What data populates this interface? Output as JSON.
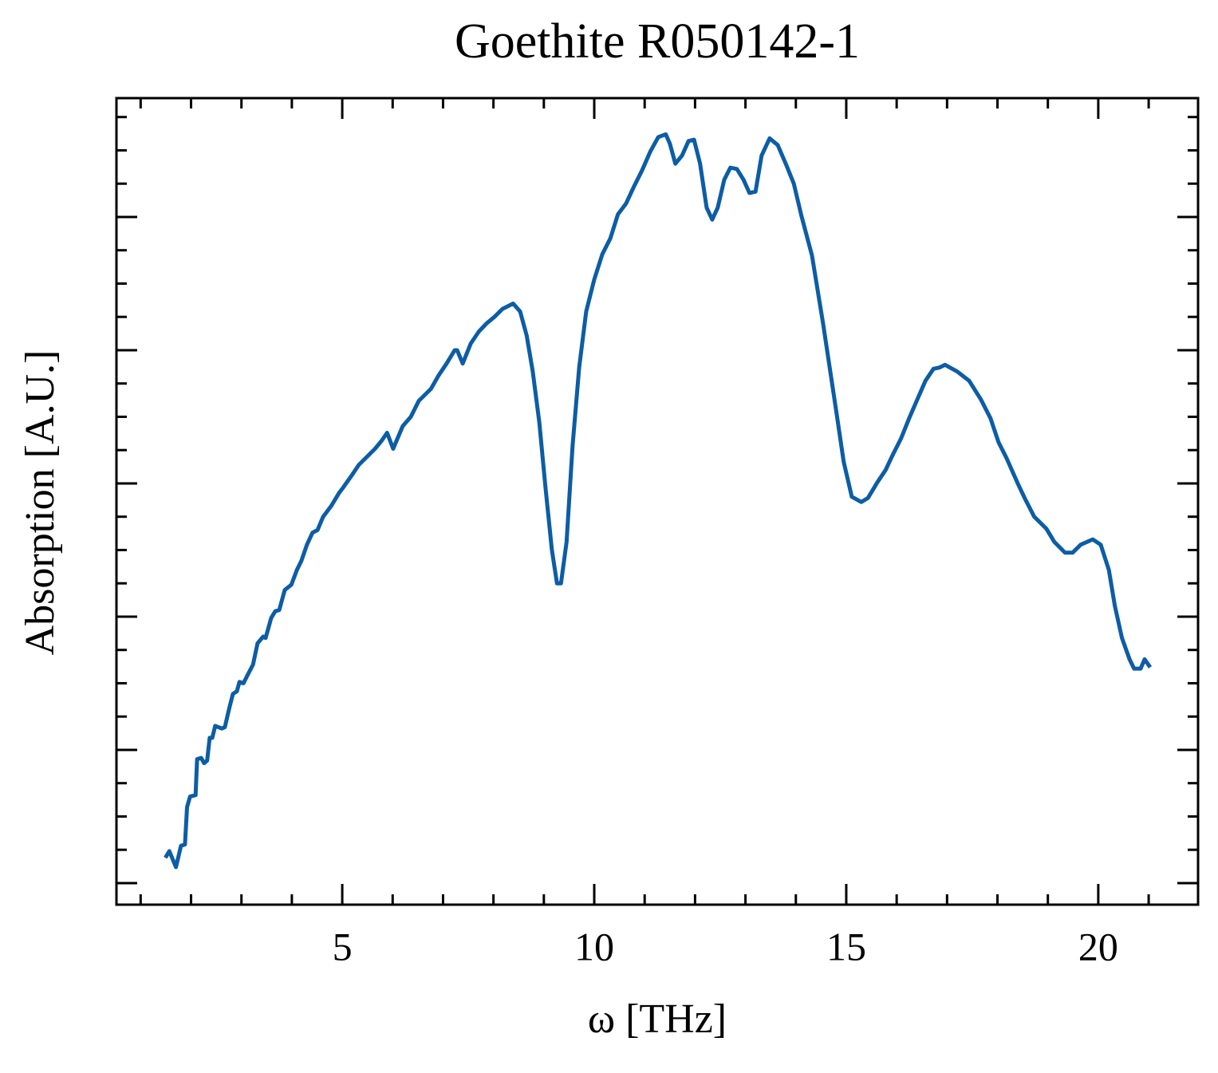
{
  "chart_data": {
    "type": "line",
    "title": "Goethite R050142-1",
    "x_label": "ω [THz]",
    "y_label": "Absorption [A.U.]",
    "xlim": [
      0.52,
      21.98
    ],
    "xticks": [
      5,
      10,
      15,
      20
    ],
    "x_minor_ticks": [
      1,
      2,
      3,
      4,
      6,
      7,
      8,
      9,
      11,
      12,
      13,
      14,
      16,
      17,
      18,
      19,
      21
    ],
    "ylim": [
      -0.162,
      5.892
    ],
    "yticks": [
      0,
      1,
      2,
      3,
      4,
      5
    ],
    "y_minor_ticks": [
      0.25,
      0.5,
      0.75,
      1.25,
      1.5,
      1.75,
      2.25,
      2.5,
      2.75,
      3.25,
      3.5,
      3.75,
      4.25,
      4.5,
      4.75,
      5.25,
      5.5,
      5.75
    ],
    "grid": false,
    "series": [
      {
        "name": "Goethite R050142-1",
        "color": "#0c5da5",
        "x": [
          1.49,
          1.57,
          1.7,
          1.8,
          1.88,
          1.92,
          1.98,
          2.09,
          2.12,
          2.2,
          2.26,
          2.32,
          2.37,
          2.42,
          2.48,
          2.61,
          2.67,
          2.75,
          2.83,
          2.91,
          2.96,
          3.04,
          3.12,
          3.23,
          3.32,
          3.43,
          3.48,
          3.59,
          3.67,
          3.75,
          3.86,
          3.99,
          4.1,
          4.19,
          4.3,
          4.41,
          4.51,
          4.62,
          4.78,
          4.94,
          5.02,
          5.17,
          5.33,
          5.49,
          5.65,
          5.78,
          5.89,
          6.01,
          6.2,
          6.36,
          6.52,
          6.76,
          6.91,
          7.07,
          7.23,
          7.28,
          7.39,
          7.55,
          7.71,
          7.86,
          8.02,
          8.18,
          8.39,
          8.53,
          8.66,
          8.78,
          8.91,
          9.03,
          9.16,
          9.26,
          9.34,
          9.45,
          9.57,
          9.7,
          9.84,
          10.0,
          10.16,
          10.32,
          10.47,
          10.63,
          10.79,
          10.95,
          11.11,
          11.27,
          11.42,
          11.5,
          11.61,
          11.74,
          11.87,
          11.98,
          12.1,
          12.23,
          12.34,
          12.45,
          12.58,
          12.7,
          12.83,
          12.96,
          13.08,
          13.2,
          13.32,
          13.48,
          13.64,
          13.8,
          13.96,
          14.11,
          14.32,
          14.54,
          14.79,
          14.95,
          15.11,
          15.3,
          15.43,
          15.62,
          15.78,
          15.93,
          16.09,
          16.25,
          16.41,
          16.57,
          16.73,
          16.85,
          16.96,
          17.2,
          17.44,
          17.67,
          17.86,
          18.02,
          18.18,
          18.39,
          18.54,
          18.73,
          18.97,
          19.13,
          19.34,
          19.49,
          19.65,
          19.89,
          20.05,
          20.21,
          20.33,
          20.47,
          20.62,
          20.71,
          20.84,
          20.92,
          21.03
        ],
        "values": [
          0.19,
          0.24,
          0.12,
          0.28,
          0.29,
          0.57,
          0.65,
          0.66,
          0.93,
          0.94,
          0.9,
          0.92,
          1.09,
          1.09,
          1.18,
          1.16,
          1.17,
          1.3,
          1.42,
          1.44,
          1.51,
          1.5,
          1.56,
          1.64,
          1.8,
          1.85,
          1.84,
          1.99,
          2.04,
          2.05,
          2.2,
          2.24,
          2.35,
          2.42,
          2.54,
          2.63,
          2.65,
          2.75,
          2.83,
          2.93,
          2.97,
          3.05,
          3.14,
          3.2,
          3.26,
          3.32,
          3.38,
          3.26,
          3.43,
          3.5,
          3.62,
          3.71,
          3.81,
          3.9,
          4.0,
          4.0,
          3.9,
          4.05,
          4.14,
          4.2,
          4.25,
          4.31,
          4.35,
          4.29,
          4.11,
          3.84,
          3.46,
          2.98,
          2.5,
          2.25,
          2.25,
          2.56,
          3.28,
          3.87,
          4.29,
          4.53,
          4.72,
          4.84,
          5.02,
          5.1,
          5.23,
          5.35,
          5.49,
          5.6,
          5.62,
          5.55,
          5.4,
          5.46,
          5.57,
          5.58,
          5.4,
          5.07,
          4.98,
          5.07,
          5.28,
          5.37,
          5.36,
          5.28,
          5.18,
          5.19,
          5.46,
          5.59,
          5.54,
          5.4,
          5.25,
          5.01,
          4.71,
          4.2,
          3.57,
          3.16,
          2.9,
          2.86,
          2.89,
          3.01,
          3.1,
          3.22,
          3.34,
          3.49,
          3.63,
          3.77,
          3.86,
          3.87,
          3.89,
          3.84,
          3.77,
          3.63,
          3.49,
          3.31,
          3.19,
          3.01,
          2.89,
          2.75,
          2.66,
          2.56,
          2.48,
          2.48,
          2.54,
          2.58,
          2.54,
          2.35,
          2.08,
          1.84,
          1.68,
          1.61,
          1.61,
          1.68,
          1.62
        ]
      }
    ]
  }
}
